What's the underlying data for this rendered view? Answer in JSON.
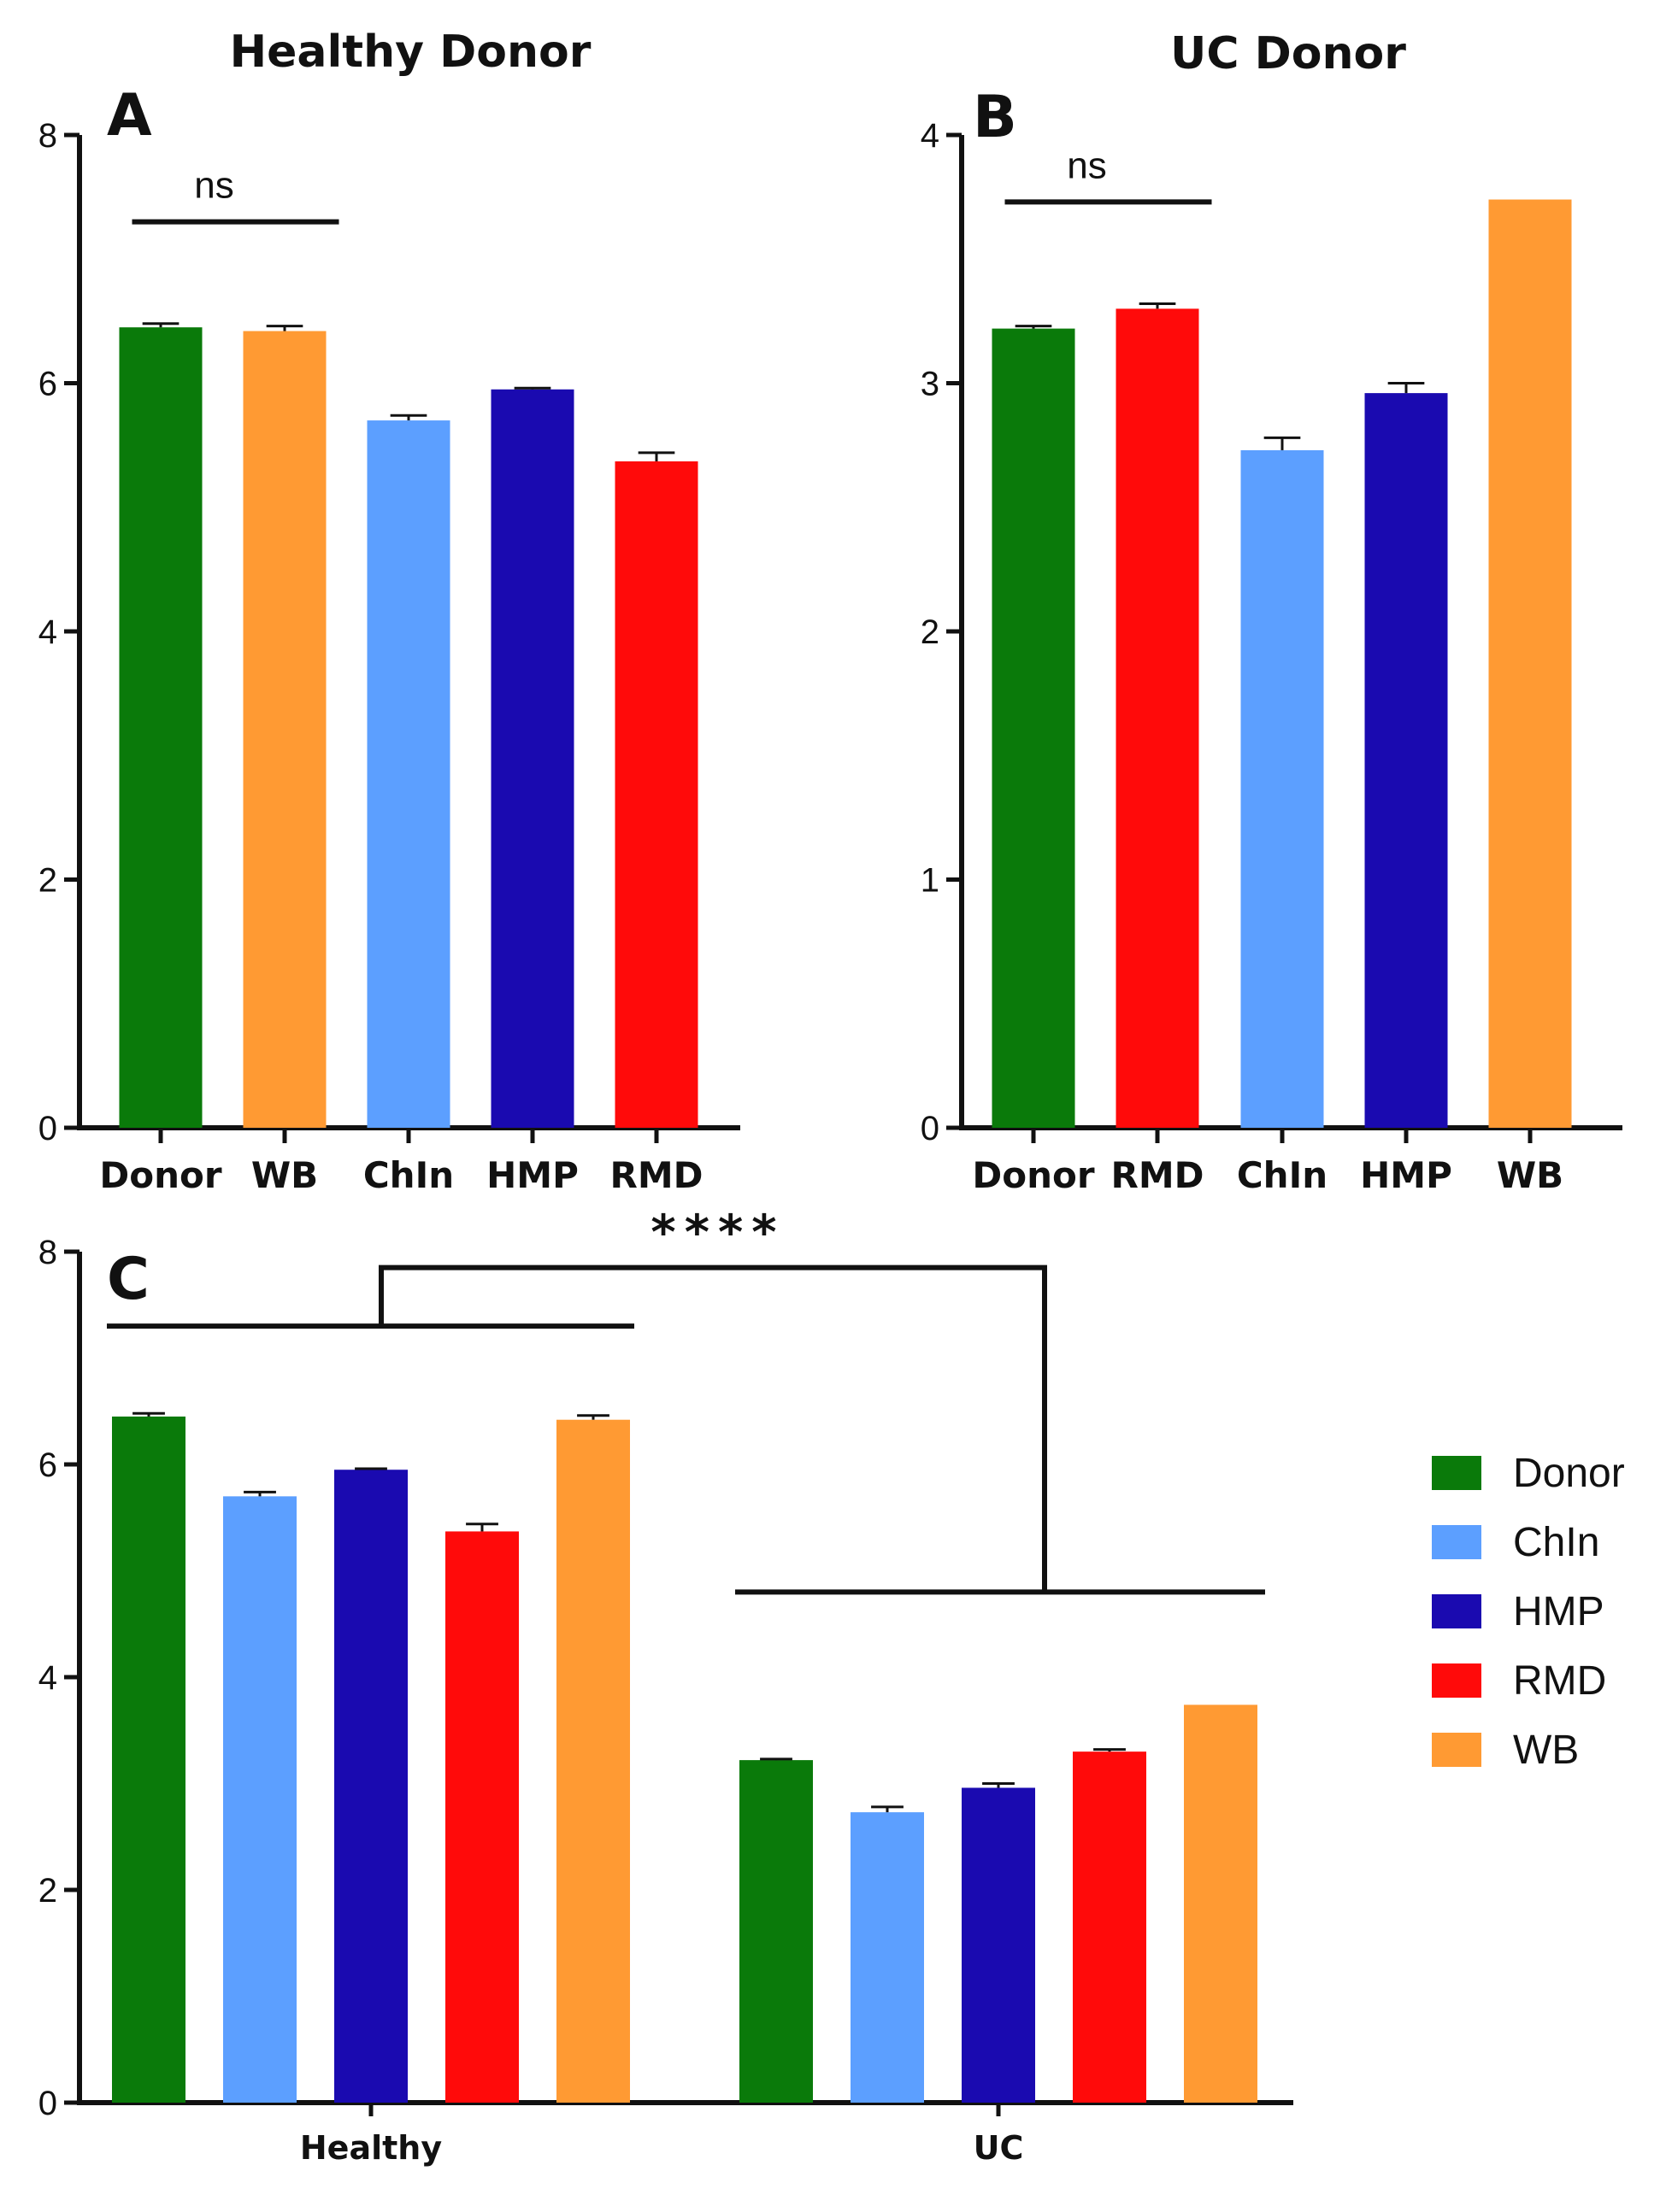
{
  "colors": {
    "Donor": "#0a7a0a",
    "WB": "#ff9a33",
    "ChIn": "#5c9fff",
    "HMP": "#1a0ab0",
    "RMD": "#ff0a0a",
    "axis": "#111111"
  },
  "chart_data": [
    {
      "panel": "A",
      "type": "bar",
      "title": "Healthy  Donor",
      "categories": [
        "Donor",
        "WB",
        "ChIn",
        "HMP",
        "RMD"
      ],
      "values": [
        6.45,
        6.42,
        5.7,
        5.95,
        5.37
      ],
      "errors": [
        0.03,
        0.04,
        0.04,
        0.01,
        0.07
      ],
      "ylim": [
        0,
        8
      ],
      "yticks": [
        "0",
        "2",
        "4",
        "6",
        "8"
      ],
      "annotation": {
        "label": "ns",
        "from": "Donor",
        "to": "WB",
        "y": 7.3
      }
    },
    {
      "panel": "B",
      "type": "bar",
      "title": "UC Donor",
      "categories": [
        "Donor",
        "RMD",
        "ChIn",
        "HMP",
        "WB"
      ],
      "values": [
        3.22,
        3.3,
        2.73,
        2.96,
        3.74
      ],
      "errors": [
        0.01,
        0.02,
        0.05,
        0.04,
        0.0
      ],
      "ylim": [
        0,
        4
      ],
      "yticks": [
        "0",
        "1",
        "2",
        "3",
        "4"
      ],
      "annotation": {
        "label": "ns",
        "from": "Donor",
        "to": "RMD",
        "y": 3.73
      }
    },
    {
      "panel": "C",
      "type": "bar",
      "title": "",
      "groups": [
        "Healthy",
        "UC"
      ],
      "series": [
        {
          "name": "Donor",
          "values": [
            6.45,
            3.22
          ],
          "errors": [
            0.03,
            0.01
          ]
        },
        {
          "name": "ChIn",
          "values": [
            5.7,
            2.73
          ],
          "errors": [
            0.04,
            0.05
          ]
        },
        {
          "name": "HMP",
          "values": [
            5.95,
            2.96
          ],
          "errors": [
            0.01,
            0.04
          ]
        },
        {
          "name": "RMD",
          "values": [
            5.37,
            3.3
          ],
          "errors": [
            0.07,
            0.02
          ]
        },
        {
          "name": "WB",
          "values": [
            6.42,
            3.74
          ],
          "errors": [
            0.04,
            0.0
          ]
        }
      ],
      "ylim": [
        0,
        8
      ],
      "yticks": [
        "0",
        "2",
        "4",
        "6",
        "8"
      ],
      "legend": [
        "Donor",
        "ChIn",
        "HMP",
        "RMD",
        "WB"
      ],
      "annotation": {
        "label": "****",
        "between": [
          "Healthy",
          "UC"
        ],
        "y_healthy": 7.3,
        "y_uc": 4.8,
        "y_bracket": 7.85
      }
    }
  ]
}
